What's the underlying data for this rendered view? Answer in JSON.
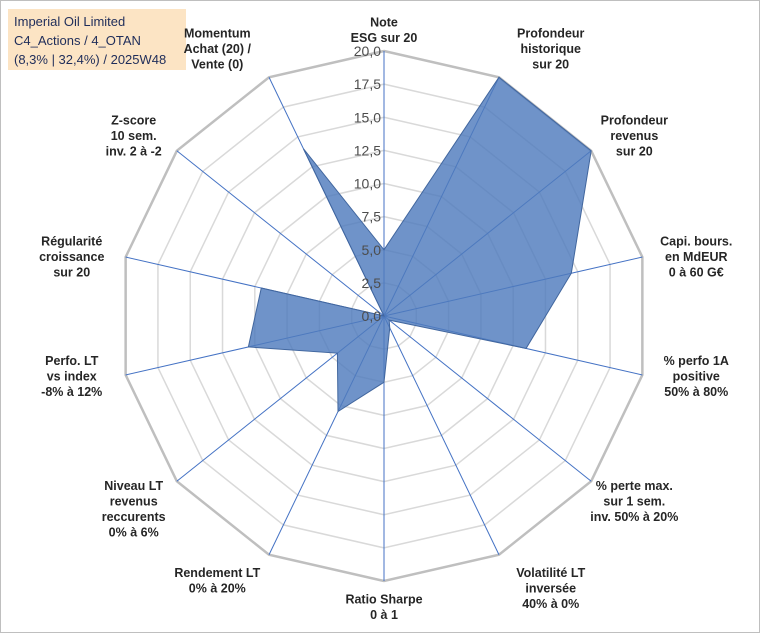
{
  "chart_data": {
    "type": "radar",
    "title_lines": [
      "Imperial Oil Limited",
      "C4_Actions / 4_OTAN",
      "(8,3% | 32,4%) / 2025W48"
    ],
    "rlim": [
      0,
      20
    ],
    "r_ticks": [
      "0,0",
      "2,5",
      "5,0",
      "7,5",
      "10,0",
      "12,5",
      "15,0",
      "17,5",
      "20,0"
    ],
    "axes": [
      {
        "label": [
          "Note",
          "ESG sur 20"
        ],
        "value": 5.0
      },
      {
        "label": [
          "Profondeur",
          "historique",
          "sur 20"
        ],
        "value": 20.0
      },
      {
        "label": [
          "Profondeur",
          "revenus",
          "sur 20"
        ],
        "value": 20.0
      },
      {
        "label": [
          "Capi. bours.",
          "en MdEUR",
          "0 à 60 G€"
        ],
        "value": 14.5
      },
      {
        "label": [
          "% perfo 1A",
          "positive",
          "50% à 80%"
        ],
        "value": 11.0
      },
      {
        "label": [
          "% perte max.",
          "sur 1 sem.",
          "inv. 50% à 20%"
        ],
        "value": 0.5
      },
      {
        "label": [
          "Volatilité LT",
          "inversée",
          "40% à 0%"
        ],
        "value": 1.0
      },
      {
        "label": [
          "Ratio Sharpe",
          "0 à 1"
        ],
        "value": 5.0
      },
      {
        "label": [
          "Rendement LT",
          "0% à 20%"
        ],
        "value": 8.0
      },
      {
        "label": [
          "Niveau LT",
          "revenus",
          "reccurents",
          "0% à 6%"
        ],
        "value": 4.5
      },
      {
        "label": [
          "Perfo. LT",
          "vs index",
          "-8% à 12%"
        ],
        "value": 10.5
      },
      {
        "label": [
          "Régularité",
          "croissance",
          "sur 20"
        ],
        "value": 9.5
      },
      {
        "label": [
          "Z-score",
          "10 sem.",
          "inv. 2 à -2"
        ],
        "value": 0.0
      },
      {
        "label": [
          "Momentum",
          "Achat (20) /",
          "Vente (0)"
        ],
        "value": 14.0
      }
    ],
    "series": [
      {
        "name": "Imperial Oil Limited",
        "color": "#4f7bbd"
      }
    ],
    "colors": {
      "fill": "#4f7bbd",
      "grid": "#d9d9d9",
      "spokes": "#4472c4",
      "outer": "#bfbfbf"
    }
  }
}
